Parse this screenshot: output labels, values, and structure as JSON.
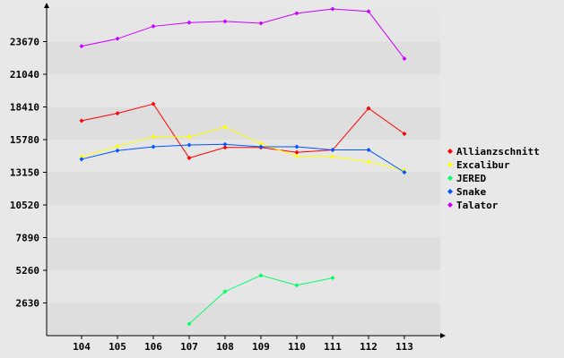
{
  "chart_data": {
    "type": "line",
    "title": "",
    "xlabel": "",
    "ylabel": "",
    "categories": [
      "104",
      "105",
      "106",
      "107",
      "108",
      "109",
      "110",
      "111",
      "112",
      "113"
    ],
    "y_ticks": [
      "2630",
      "5260",
      "7890",
      "10520",
      "13150",
      "15780",
      "18410",
      "21040",
      "23670"
    ],
    "ylim": [
      0,
      26300
    ],
    "grid": "horizontal alternating bands",
    "legend_position": "right",
    "series": [
      {
        "name": "Allianzschnitt",
        "color": "#ff0000",
        "values": [
          17300,
          17900,
          18650,
          14300,
          15150,
          15150,
          14750,
          14950,
          18300,
          16250
        ]
      },
      {
        "name": "Excalibur",
        "color": "#ffff00",
        "values": [
          14400,
          15250,
          16000,
          16000,
          16800,
          15450,
          14450,
          14400,
          14000,
          13300
        ]
      },
      {
        "name": "JERED",
        "color": "#00ff66",
        "values": [
          null,
          null,
          null,
          950,
          3550,
          4850,
          4050,
          4650,
          null,
          null
        ]
      },
      {
        "name": "Snake",
        "color": "#0055ff",
        "values": [
          14200,
          14900,
          15200,
          15350,
          15400,
          15200,
          15200,
          14950,
          14950,
          13150
        ]
      },
      {
        "name": "Talator",
        "color": "#cc00ff",
        "values": [
          23300,
          23900,
          24900,
          25200,
          25300,
          25150,
          25950,
          26300,
          26100,
          22300
        ]
      }
    ]
  }
}
